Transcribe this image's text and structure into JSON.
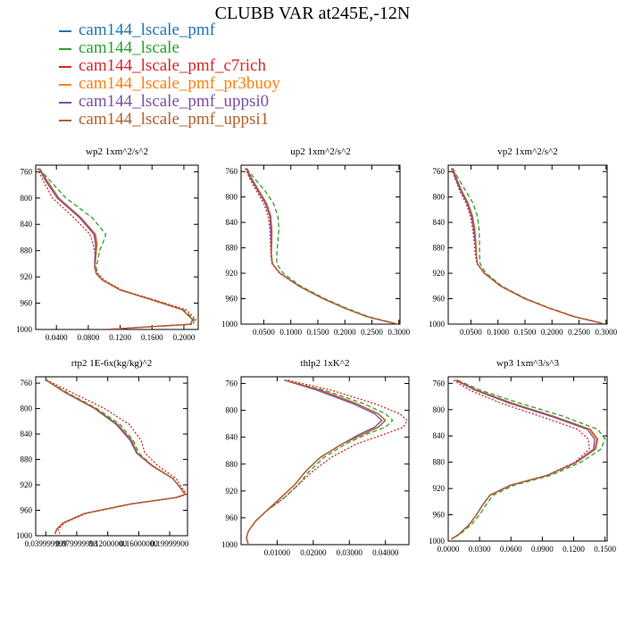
{
  "page": {
    "title": "CLUBB VAR at245E,-12N"
  },
  "legend": [
    {
      "name": "cam144_lscale_pmf",
      "color": "#1f77b4"
    },
    {
      "name": "cam144_lscale",
      "color": "#2ca02c"
    },
    {
      "name": "cam144_lscale_pmf_c7rich",
      "color": "#d62728"
    },
    {
      "name": "cam144_lscale_pmf_pr3buoy",
      "color": "#ff7f0e"
    },
    {
      "name": "cam144_lscale_pmf_uppsi0",
      "color": "#7b4fa8"
    },
    {
      "name": "cam144_lscale_pmf_uppsi1",
      "color": "#b5602e"
    }
  ],
  "chart_data": [
    {
      "type": "line",
      "title": "wp2  1xm^2/s^2",
      "ylim": [
        1000,
        750
      ],
      "yticks": [
        "760",
        "800",
        "840",
        "880",
        "920",
        "960",
        "1000"
      ],
      "xlim": [
        0.014,
        0.218
      ],
      "xticks": [
        "0.0400",
        "0.0800",
        "0.1200",
        "0.1600",
        "0.2000"
      ],
      "y": [
        755,
        775,
        800,
        830,
        855,
        870,
        880,
        895,
        905,
        915,
        925,
        940,
        955,
        970,
        985,
        992,
        1000
      ],
      "series": [
        {
          "name": "cam144_lscale_pmf",
          "values": [
            0.018,
            0.028,
            0.042,
            0.07,
            0.088,
            0.09,
            0.09,
            0.089,
            0.088,
            0.09,
            0.098,
            0.12,
            0.16,
            0.198,
            0.211,
            0.208,
            0.102
          ]
        },
        {
          "name": "cam144_lscale",
          "values": [
            0.018,
            0.033,
            0.052,
            0.085,
            0.102,
            0.098,
            0.094,
            0.092,
            0.09,
            0.091,
            0.098,
            0.121,
            0.162,
            0.2,
            0.213,
            0.21,
            0.104
          ]
        },
        {
          "name": "cam144_lscale_pmf_c7rich",
          "values": [
            0.016,
            0.024,
            0.035,
            0.062,
            0.082,
            0.086,
            0.088,
            0.089,
            0.089,
            0.092,
            0.1,
            0.122,
            0.163,
            0.203,
            0.215,
            0.211,
            0.108
          ]
        },
        {
          "name": "cam144_lscale_pmf_pr3buoy",
          "values": [
            0.018,
            0.028,
            0.042,
            0.07,
            0.088,
            0.09,
            0.09,
            0.089,
            0.088,
            0.09,
            0.098,
            0.12,
            0.16,
            0.198,
            0.211,
            0.208,
            0.102
          ]
        },
        {
          "name": "cam144_lscale_pmf_uppsi0",
          "values": [
            0.018,
            0.027,
            0.041,
            0.069,
            0.087,
            0.089,
            0.089,
            0.088,
            0.088,
            0.09,
            0.098,
            0.12,
            0.16,
            0.198,
            0.211,
            0.208,
            0.102
          ]
        },
        {
          "name": "cam144_lscale_pmf_uppsi1",
          "values": [
            0.019,
            0.029,
            0.043,
            0.071,
            0.089,
            0.091,
            0.09,
            0.089,
            0.088,
            0.09,
            0.098,
            0.12,
            0.16,
            0.198,
            0.211,
            0.208,
            0.102
          ]
        }
      ]
    },
    {
      "type": "line",
      "title": "up2  1xm^2/s^2",
      "ylim": [
        1000,
        750
      ],
      "yticks": [
        "760",
        "800",
        "840",
        "880",
        "920",
        "960",
        "1000"
      ],
      "xlim": [
        0.008,
        0.302
      ],
      "xticks": [
        "0.0500",
        "0.1000",
        "0.1500",
        "0.2000",
        "0.2500",
        "0.3000"
      ],
      "y": [
        755,
        770,
        790,
        810,
        830,
        850,
        870,
        890,
        905,
        920,
        940,
        960,
        975,
        988,
        996,
        1000
      ],
      "series": [
        {
          "name": "cam144_lscale_pmf",
          "values": [
            0.018,
            0.026,
            0.04,
            0.054,
            0.062,
            0.064,
            0.064,
            0.064,
            0.066,
            0.08,
            0.115,
            0.16,
            0.2,
            0.24,
            0.278,
            0.298
          ]
        },
        {
          "name": "cam144_lscale",
          "values": [
            0.018,
            0.032,
            0.052,
            0.068,
            0.076,
            0.078,
            0.076,
            0.074,
            0.074,
            0.086,
            0.118,
            0.163,
            0.203,
            0.243,
            0.28,
            0.298
          ]
        },
        {
          "name": "cam144_lscale_pmf_c7rich",
          "values": [
            0.016,
            0.023,
            0.036,
            0.05,
            0.058,
            0.061,
            0.062,
            0.063,
            0.065,
            0.079,
            0.114,
            0.159,
            0.2,
            0.24,
            0.278,
            0.298
          ]
        },
        {
          "name": "cam144_lscale_pmf_pr3buoy",
          "values": [
            0.018,
            0.026,
            0.04,
            0.054,
            0.062,
            0.064,
            0.064,
            0.064,
            0.066,
            0.08,
            0.115,
            0.16,
            0.2,
            0.24,
            0.278,
            0.298
          ]
        },
        {
          "name": "cam144_lscale_pmf_uppsi0",
          "values": [
            0.018,
            0.025,
            0.039,
            0.053,
            0.061,
            0.063,
            0.064,
            0.064,
            0.066,
            0.08,
            0.115,
            0.16,
            0.2,
            0.24,
            0.278,
            0.298
          ]
        },
        {
          "name": "cam144_lscale_pmf_uppsi1",
          "values": [
            0.019,
            0.027,
            0.041,
            0.055,
            0.063,
            0.065,
            0.065,
            0.064,
            0.066,
            0.08,
            0.115,
            0.16,
            0.2,
            0.24,
            0.278,
            0.298
          ]
        }
      ]
    },
    {
      "type": "line",
      "title": "vp2  1xm^2/s^2",
      "ylim": [
        1000,
        750
      ],
      "yticks": [
        "760",
        "800",
        "840",
        "880",
        "920",
        "960",
        "1000"
      ],
      "xlim": [
        0.008,
        0.302
      ],
      "xticks": [
        "0.0500",
        "0.1000",
        "0.1500",
        "0.2000",
        "0.2500",
        "0.3000"
      ],
      "y": [
        755,
        770,
        790,
        810,
        830,
        850,
        870,
        890,
        905,
        920,
        940,
        960,
        975,
        988,
        996,
        1000
      ],
      "series": [
        {
          "name": "cam144_lscale_pmf",
          "values": [
            0.016,
            0.022,
            0.032,
            0.044,
            0.052,
            0.056,
            0.058,
            0.06,
            0.062,
            0.075,
            0.105,
            0.15,
            0.195,
            0.24,
            0.28,
            0.298
          ]
        },
        {
          "name": "cam144_lscale",
          "values": [
            0.016,
            0.026,
            0.04,
            0.054,
            0.062,
            0.065,
            0.066,
            0.066,
            0.067,
            0.078,
            0.107,
            0.152,
            0.197,
            0.242,
            0.281,
            0.298
          ]
        },
        {
          "name": "cam144_lscale_pmf_c7rich",
          "values": [
            0.014,
            0.02,
            0.029,
            0.041,
            0.049,
            0.053,
            0.056,
            0.058,
            0.061,
            0.074,
            0.104,
            0.149,
            0.195,
            0.24,
            0.28,
            0.298
          ]
        },
        {
          "name": "cam144_lscale_pmf_pr3buoy",
          "values": [
            0.016,
            0.022,
            0.032,
            0.044,
            0.052,
            0.056,
            0.058,
            0.06,
            0.062,
            0.075,
            0.105,
            0.15,
            0.195,
            0.24,
            0.28,
            0.298
          ]
        },
        {
          "name": "cam144_lscale_pmf_uppsi0",
          "values": [
            0.016,
            0.021,
            0.031,
            0.043,
            0.051,
            0.055,
            0.058,
            0.06,
            0.062,
            0.075,
            0.105,
            0.15,
            0.195,
            0.24,
            0.28,
            0.298
          ]
        },
        {
          "name": "cam144_lscale_pmf_uppsi1",
          "values": [
            0.017,
            0.023,
            0.033,
            0.045,
            0.053,
            0.057,
            0.059,
            0.06,
            0.062,
            0.075,
            0.105,
            0.15,
            0.195,
            0.24,
            0.28,
            0.298
          ]
        }
      ]
    },
    {
      "type": "line",
      "title": "rtp2  1E-6x(kg/kg)^2",
      "ylim": [
        1000,
        750
      ],
      "yticks": [
        "760",
        "800",
        "840",
        "880",
        "920",
        "960",
        "1000"
      ],
      "xlim": [
        0.027,
        0.223
      ],
      "xticks": [
        "0.039999999",
        "0.079999998",
        "0.12000000",
        "0.16000000",
        "0.19999900"
      ],
      "y": [
        755,
        775,
        800,
        825,
        850,
        870,
        890,
        910,
        925,
        935,
        940,
        950,
        965,
        980,
        990,
        997
      ],
      "series": [
        {
          "name": "cam144_lscale_pmf",
          "values": [
            0.04,
            0.066,
            0.104,
            0.132,
            0.15,
            0.158,
            0.178,
            0.204,
            0.214,
            0.22,
            0.208,
            0.15,
            0.09,
            0.062,
            0.054,
            0.052
          ]
        },
        {
          "name": "cam144_lscale",
          "values": [
            0.04,
            0.068,
            0.106,
            0.136,
            0.153,
            0.16,
            0.178,
            0.204,
            0.214,
            0.22,
            0.208,
            0.15,
            0.09,
            0.062,
            0.054,
            0.052
          ]
        },
        {
          "name": "cam144_lscale_pmf_c7rich",
          "values": [
            0.041,
            0.074,
            0.116,
            0.148,
            0.163,
            0.168,
            0.185,
            0.208,
            0.216,
            0.222,
            0.21,
            0.152,
            0.092,
            0.064,
            0.056,
            0.058
          ]
        },
        {
          "name": "cam144_lscale_pmf_pr3buoy",
          "values": [
            0.04,
            0.066,
            0.104,
            0.132,
            0.15,
            0.158,
            0.178,
            0.204,
            0.214,
            0.22,
            0.208,
            0.15,
            0.09,
            0.062,
            0.054,
            0.052
          ]
        },
        {
          "name": "cam144_lscale_pmf_uppsi0",
          "values": [
            0.04,
            0.065,
            0.103,
            0.131,
            0.149,
            0.157,
            0.177,
            0.204,
            0.214,
            0.22,
            0.208,
            0.15,
            0.09,
            0.062,
            0.054,
            0.052
          ]
        },
        {
          "name": "cam144_lscale_pmf_uppsi1",
          "values": [
            0.04,
            0.066,
            0.104,
            0.133,
            0.151,
            0.158,
            0.178,
            0.204,
            0.214,
            0.22,
            0.208,
            0.15,
            0.09,
            0.062,
            0.054,
            0.052
          ]
        }
      ]
    },
    {
      "type": "line",
      "title": "thlp2  1xK^2",
      "ylim": [
        1000,
        750
      ],
      "yticks": [
        "760",
        "800",
        "840",
        "880",
        "920",
        "960",
        "1000"
      ],
      "xlim": [
        0.0,
        0.0465
      ],
      "xticks": [
        "0.01000",
        "0.02000",
        "0.03000",
        "0.04000"
      ],
      "y": [
        755,
        770,
        790,
        805,
        815,
        825,
        835,
        850,
        870,
        890,
        910,
        930,
        950,
        965,
        980,
        990,
        1000
      ],
      "series": [
        {
          "name": "cam144_lscale_pmf",
          "values": [
            0.012,
            0.022,
            0.032,
            0.038,
            0.04,
            0.038,
            0.034,
            0.028,
            0.022,
            0.018,
            0.015,
            0.011,
            0.007,
            0.004,
            0.002,
            0.0015,
            0.002
          ]
        },
        {
          "name": "cam144_lscale",
          "values": [
            0.012,
            0.023,
            0.034,
            0.04,
            0.042,
            0.04,
            0.035,
            0.029,
            0.023,
            0.019,
            0.016,
            0.012,
            0.007,
            0.004,
            0.002,
            0.0015,
            0.002
          ]
        },
        {
          "name": "cam144_lscale_pmf_c7rich",
          "values": [
            0.013,
            0.025,
            0.037,
            0.044,
            0.046,
            0.045,
            0.04,
            0.032,
            0.025,
            0.02,
            0.016,
            0.012,
            0.007,
            0.004,
            0.002,
            0.0015,
            0.002
          ]
        },
        {
          "name": "cam144_lscale_pmf_pr3buoy",
          "values": [
            0.012,
            0.022,
            0.032,
            0.038,
            0.04,
            0.038,
            0.034,
            0.028,
            0.022,
            0.018,
            0.015,
            0.011,
            0.007,
            0.004,
            0.002,
            0.0015,
            0.002
          ]
        },
        {
          "name": "cam144_lscale_pmf_uppsi0",
          "values": [
            0.012,
            0.021,
            0.031,
            0.037,
            0.039,
            0.037,
            0.033,
            0.028,
            0.022,
            0.018,
            0.015,
            0.011,
            0.007,
            0.004,
            0.002,
            0.0015,
            0.002
          ]
        },
        {
          "name": "cam144_lscale_pmf_uppsi1",
          "values": [
            0.012,
            0.022,
            0.032,
            0.038,
            0.04,
            0.038,
            0.034,
            0.028,
            0.022,
            0.018,
            0.015,
            0.011,
            0.007,
            0.004,
            0.002,
            0.0015,
            0.002
          ]
        }
      ]
    },
    {
      "type": "line",
      "title": "wp3  1xm^3/s^3",
      "ylim": [
        1000,
        750
      ],
      "yticks": [
        "760",
        "800",
        "840",
        "880",
        "920",
        "960",
        "1000"
      ],
      "xlim": [
        0.0,
        0.152
      ],
      "xticks": [
        "0.0000",
        "0.0300",
        "0.0600",
        "0.0900",
        "0.1200",
        "0.1500"
      ],
      "y": [
        755,
        770,
        790,
        810,
        830,
        845,
        860,
        880,
        900,
        915,
        930,
        945,
        960,
        975,
        990,
        997
      ],
      "series": [
        {
          "name": "cam144_lscale_pmf",
          "values": [
            0.007,
            0.026,
            0.06,
            0.1,
            0.135,
            0.142,
            0.14,
            0.123,
            0.095,
            0.06,
            0.04,
            0.033,
            0.027,
            0.02,
            0.01,
            0.003
          ]
        },
        {
          "name": "cam144_lscale",
          "values": [
            0.009,
            0.03,
            0.068,
            0.11,
            0.143,
            0.15,
            0.146,
            0.127,
            0.098,
            0.063,
            0.043,
            0.036,
            0.03,
            0.022,
            0.011,
            0.003
          ]
        },
        {
          "name": "cam144_lscale_pmf_c7rich",
          "values": [
            0.005,
            0.02,
            0.05,
            0.088,
            0.124,
            0.134,
            0.135,
            0.121,
            0.094,
            0.059,
            0.04,
            0.033,
            0.027,
            0.02,
            0.01,
            0.003
          ]
        },
        {
          "name": "cam144_lscale_pmf_pr3buoy",
          "values": [
            0.007,
            0.026,
            0.06,
            0.1,
            0.135,
            0.142,
            0.14,
            0.123,
            0.095,
            0.06,
            0.04,
            0.033,
            0.027,
            0.02,
            0.01,
            0.003
          ]
        },
        {
          "name": "cam144_lscale_pmf_uppsi0",
          "values": [
            0.007,
            0.025,
            0.058,
            0.098,
            0.133,
            0.14,
            0.139,
            0.122,
            0.095,
            0.06,
            0.04,
            0.033,
            0.027,
            0.02,
            0.01,
            0.003
          ]
        },
        {
          "name": "cam144_lscale_pmf_uppsi1",
          "values": [
            0.008,
            0.027,
            0.061,
            0.101,
            0.136,
            0.143,
            0.141,
            0.123,
            0.095,
            0.06,
            0.04,
            0.033,
            0.027,
            0.02,
            0.01,
            0.003
          ]
        }
      ]
    }
  ]
}
